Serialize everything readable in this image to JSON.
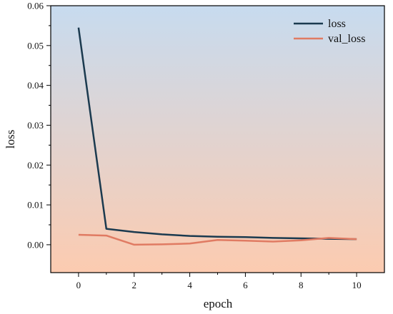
{
  "chart_data": {
    "type": "line",
    "xlabel": "epoch",
    "ylabel": "loss",
    "xlim": [
      -1,
      11
    ],
    "ylim": [
      -0.007,
      0.06
    ],
    "x_ticks": [
      0,
      2,
      4,
      6,
      8,
      10
    ],
    "x_tick_labels": [
      "0",
      "2",
      "4",
      "6",
      "8",
      "10"
    ],
    "y_ticks": [
      0.0,
      0.01,
      0.02,
      0.03,
      0.04,
      0.05,
      0.06
    ],
    "y_tick_labels": [
      "0.00",
      "0.01",
      "0.02",
      "0.03",
      "0.04",
      "0.05",
      "0.06"
    ],
    "background_gradient": {
      "top": "#c7dbef",
      "bottom": "#fccbb0"
    },
    "legend_placement": "top-right",
    "series": [
      {
        "name": "loss",
        "color": "#1b3a4f",
        "x": [
          0,
          1,
          2,
          3,
          4,
          5,
          6,
          7,
          8,
          9,
          10
        ],
        "values": [
          0.0545,
          0.004,
          0.0032,
          0.0026,
          0.0022,
          0.002,
          0.0019,
          0.0017,
          0.0016,
          0.0015,
          0.0014
        ]
      },
      {
        "name": "val_loss",
        "color": "#e07b63",
        "x": [
          0,
          1,
          2,
          3,
          4,
          5,
          6,
          7,
          8,
          9,
          10
        ],
        "values": [
          0.0025,
          0.0023,
          0.0,
          0.0001,
          0.0003,
          0.0012,
          0.001,
          0.0008,
          0.0011,
          0.0017,
          0.0014
        ]
      }
    ]
  }
}
